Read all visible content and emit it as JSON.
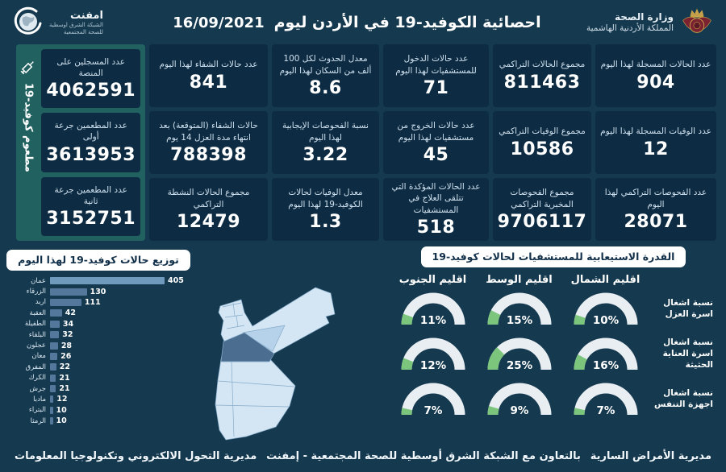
{
  "header": {
    "ministry_line1": "وزارة الصحة",
    "ministry_line2": "المملكة الأردنية الهاشمية",
    "title": "احصائية الكوفيد-19 في الأردن ليوم",
    "date": "16/09/2021",
    "emphnet_name": "امفنت",
    "emphnet_line1": "الشبكة الشرق اوسطية",
    "emphnet_line2": "للصحة المجتمعية"
  },
  "stats_columns": [
    [
      {
        "label": "عدد الحالات المسجلة لهذا اليوم",
        "value": "904"
      },
      {
        "label": "عدد الوفيات المسجلة لهذا اليوم",
        "value": "12"
      },
      {
        "label": "عدد الفحوصات التراكمي لهذا اليوم",
        "value": "28071"
      }
    ],
    [
      {
        "label": "مجموع الحالات التراكمي",
        "value": "811463"
      },
      {
        "label": "مجموع الوفيات التراكمي",
        "value": "10586"
      },
      {
        "label": "مجموع الفحوصات المخبرية التراكمي",
        "value": "9706117"
      }
    ],
    [
      {
        "label": "عدد حالات الدخول للمستشفيات لهذا اليوم",
        "value": "71"
      },
      {
        "label": "عدد حالات الخروج من مستشفيات لهذا اليوم",
        "value": "45"
      },
      {
        "label": "عدد الحالات المؤكدة التي تتلقى العلاج في المستشفيات",
        "value": "518"
      }
    ],
    [
      {
        "label": "معدل الحدوث لكل 100 ألف من السكان لهذا اليوم",
        "value": "8.6"
      },
      {
        "label": "نسبة الفحوصات الإيجابية لهذا اليوم",
        "value": "3.22"
      },
      {
        "label": "معدل الوفيات لحالات الكوفيد-19 لهذا اليوم",
        "value": "1.3"
      }
    ],
    [
      {
        "label": "عدد حالات الشفاء لهذا اليوم",
        "value": "841"
      },
      {
        "label": "حالات الشفاء (المتوقعة) بعد انتهاء مدة العزل 14 يوم",
        "value": "788398"
      },
      {
        "label": "مجموع الحالات النشطة التراكمي",
        "value": "12479"
      }
    ]
  ],
  "vaccine_panel": {
    "vertical_label": "مطعوم كوفيد-19",
    "cards": [
      {
        "label": "عدد المسجلين على المنصة",
        "value": "4062591"
      },
      {
        "label": "عدد المطعمين جرعة أولى",
        "value": "3613953"
      },
      {
        "label": "عدد المطعمين جرعة ثانية",
        "value": "3152751"
      }
    ]
  },
  "chart_data": [
    {
      "type": "bar",
      "orientation": "horizontal",
      "title": "توزيع حالات كوفيد-19 لهذا اليوم",
      "categories": [
        "عمان",
        "الزرقاء",
        "اربد",
        "العقبة",
        "الطفيلة",
        "البلقاء",
        "عجلون",
        "معان",
        "المفرق",
        "الكرك",
        "جرش",
        "مادبا",
        "البتراء",
        "الرمثا"
      ],
      "values": [
        405,
        130,
        111,
        42,
        34,
        32,
        28,
        26,
        22,
        21,
        21,
        12,
        10,
        10
      ],
      "xlim": [
        0,
        405
      ],
      "highlight_index": 0,
      "bar_color": "#54789b",
      "highlight_color": "#6f9abc"
    },
    {
      "type": "gauge-grid",
      "title": "القدرة الاستيعابية للمستشفيات لحالات كوفيد-19",
      "unit": "%",
      "columns": [
        "اقليم الشمال",
        "اقليم الوسط",
        "اقليم الجنوب"
      ],
      "rows": [
        {
          "label": "نسبة اشغال اسرة العزل",
          "values": [
            10,
            15,
            11
          ]
        },
        {
          "label": "نسبة اشغال اسرة العناية الحثيثة",
          "values": [
            16,
            25,
            12
          ]
        },
        {
          "label": "نسبة اشغال اجهزة التنفس",
          "values": [
            7,
            9,
            7
          ]
        }
      ],
      "gauge_fill_color": "#7cc57d",
      "gauge_track_color": "#e9eef2"
    }
  ],
  "map": {
    "country": "الأردن",
    "dark_region": "عمان",
    "medium_region": "الزرقاء"
  },
  "footer": {
    "right": "مديرية الأمراض السارية",
    "center": "بالتعاون مع الشبكة الشرق أوسطية للصحة المجتمعية - إمفنت",
    "left": "مديرية التحول الالكتروني وتكنولوجيا المعلومات"
  },
  "colors": {
    "background": "#15394f",
    "card": "#0d2c43",
    "vaccine_panel": "#216261",
    "gauge_green": "#7cc57d",
    "map_light": "#d4e6f4",
    "map_medium": "#b5d2ea",
    "map_dark": "#4a6d90"
  }
}
